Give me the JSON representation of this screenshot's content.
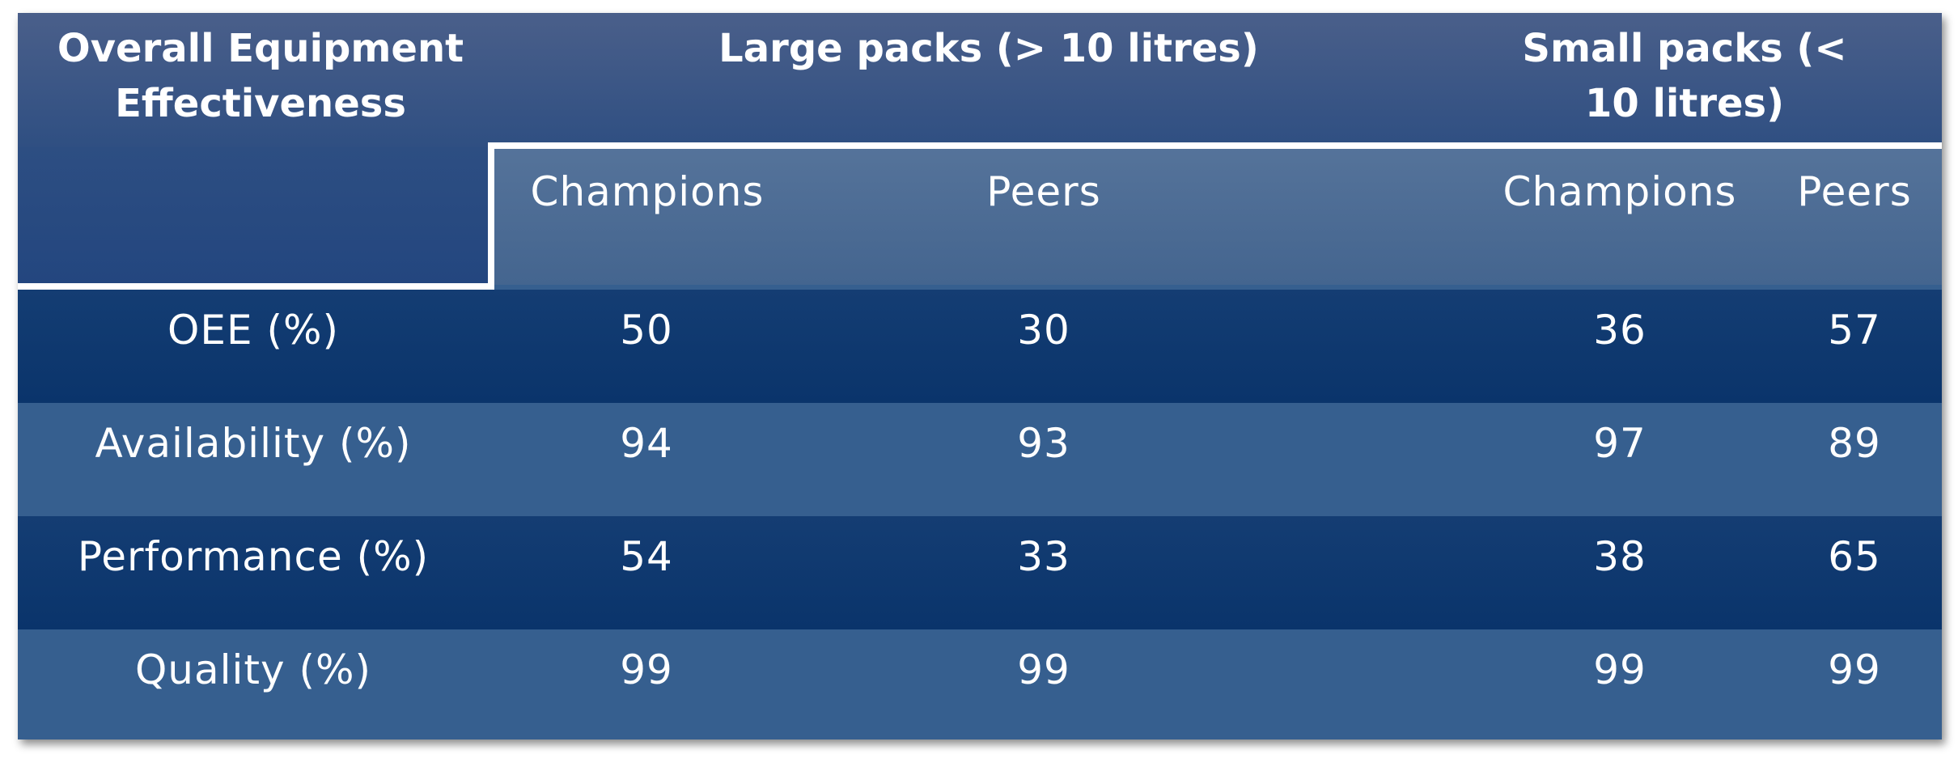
{
  "chart_data": {
    "type": "table",
    "header": {
      "corner": "Overall Equipment Effectiveness",
      "groups": [
        "Large packs (> 10 litres)",
        "Small packs (< 10 litres)"
      ],
      "subheaders": [
        "Champions",
        "Peers",
        "Champions",
        "Peers"
      ]
    },
    "rows": [
      {
        "label": "OEE (%)",
        "values": [
          50,
          30,
          36,
          57
        ]
      },
      {
        "label": "Availability (%)",
        "values": [
          94,
          93,
          97,
          89
        ]
      },
      {
        "label": "Performance (%)",
        "values": [
          54,
          33,
          38,
          65
        ]
      },
      {
        "label": "Quality (%)",
        "values": [
          99,
          99,
          99,
          99
        ]
      }
    ]
  },
  "colors": {
    "header_dark": "#2f4f82",
    "header_light": "#4e6e96",
    "row_dark": "#0a346b",
    "row_light": "#365f8f",
    "text": "#ffffff"
  }
}
